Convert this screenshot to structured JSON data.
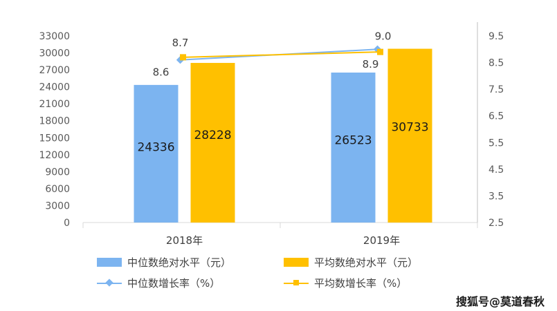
{
  "chart_data": {
    "type": "bar",
    "categories": [
      "2018年",
      "2019年"
    ],
    "series": [
      {
        "name": "中位数绝对水平（元）",
        "type": "bar",
        "axis": "left",
        "values": [
          24336,
          26523
        ],
        "color": "#7cb4f0"
      },
      {
        "name": "平均数绝对水平（元）",
        "type": "bar",
        "axis": "left",
        "values": [
          28228,
          30733
        ],
        "color": "#ffc000"
      },
      {
        "name": "中位数增长率（%）",
        "type": "line",
        "axis": "right",
        "values": [
          8.6,
          9.0
        ],
        "color": "#7cb4f0",
        "marker": "diamond"
      },
      {
        "name": "平均数增长率（%）",
        "type": "line",
        "axis": "right",
        "values": [
          8.7,
          8.9
        ],
        "color": "#ffc000",
        "marker": "square"
      }
    ],
    "bar_labels": [
      [
        "24336",
        "26523"
      ],
      [
        "28228",
        "30733"
      ]
    ],
    "line_labels": [
      [
        "8.6",
        "9.0"
      ],
      [
        "8.7",
        "8.9"
      ]
    ],
    "y_left": {
      "ylim": [
        0,
        33000
      ],
      "ticks": [
        "0",
        "3000",
        "6000",
        "9000",
        "12000",
        "15000",
        "18000",
        "21000",
        "24000",
        "27000",
        "30000",
        "33000"
      ]
    },
    "y_right": {
      "ylim": [
        2.5,
        9.5
      ],
      "ticks": [
        "2.5",
        "3.5",
        "4.5",
        "5.5",
        "6.5",
        "7.5",
        "8.5",
        "9.5"
      ]
    },
    "grid": false,
    "legend_position": "bottom"
  },
  "legend": {
    "median_abs": "中位数绝对水平（元）",
    "mean_abs": "平均数绝对水平（元）",
    "median_growth": "中位数增长率（%）",
    "mean_growth": "平均数增长率（%）"
  },
  "watermark": "搜狐号@莫道春秋"
}
